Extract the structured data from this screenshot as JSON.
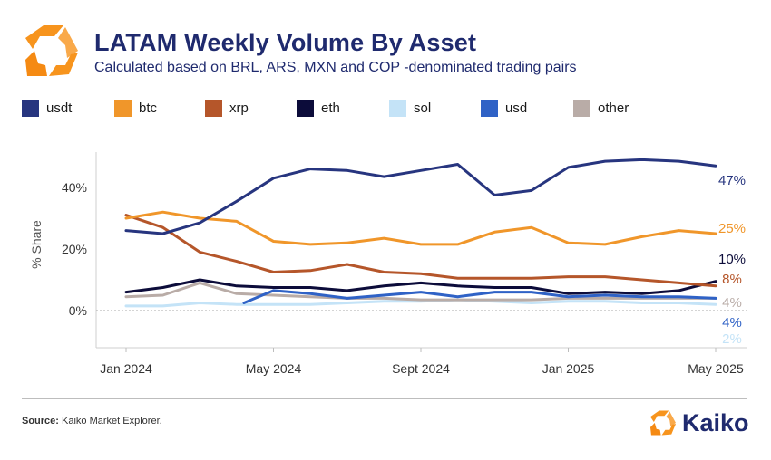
{
  "header": {
    "title": "LATAM Weekly Volume By Asset",
    "subtitle": "Calculated based on BRL, ARS, MXN and COP -denominated trading pairs"
  },
  "footer": {
    "source_label": "Source:",
    "source_text": "Kaiko Market Explorer.",
    "brand_name": "Kaiko"
  },
  "colors": {
    "brand_orange": "#f7941d",
    "brand_navy": "#1f2a6e"
  },
  "chart_data": {
    "type": "line",
    "title": "LATAM Weekly Volume By Asset",
    "ylabel": "% Share",
    "xlabel": "",
    "ylim": [
      -12,
      53
    ],
    "xlim": [
      0,
      16
    ],
    "yticks": [
      0,
      20,
      40
    ],
    "ytick_labels": [
      "0%",
      "20%",
      "40%"
    ],
    "xticks": [
      0,
      4,
      8,
      12,
      16
    ],
    "xtick_labels": [
      "Jan 2024",
      "May 2024",
      "Sept 2024",
      "Jan 2025",
      "May 2025"
    ],
    "legend_position": "top",
    "series": [
      {
        "name": "usdt",
        "color": "#27357f",
        "end_label": "47%",
        "x": [
          0,
          1,
          2,
          3,
          4,
          5,
          6,
          7,
          8,
          9,
          10,
          11,
          12,
          13,
          14,
          15,
          16
        ],
        "values": [
          26,
          25,
          28.5,
          35.5,
          43,
          46,
          45.5,
          43.5,
          45.5,
          47.5,
          37.5,
          39,
          46.5,
          48.5,
          49,
          48.5,
          47
        ]
      },
      {
        "name": "btc",
        "color": "#f0962a",
        "end_label": "25%",
        "x": [
          0,
          1,
          2,
          3,
          4,
          5,
          6,
          7,
          8,
          9,
          10,
          11,
          12,
          13,
          14,
          15,
          16
        ],
        "values": [
          30,
          32,
          30,
          29,
          22.5,
          21.5,
          22,
          23.5,
          21.5,
          21.5,
          25.5,
          27,
          22,
          21.5,
          24,
          26,
          25
        ]
      },
      {
        "name": "xrp",
        "color": "#b5562a",
        "end_label": "8%",
        "x": [
          0,
          1,
          2,
          3,
          4,
          5,
          6,
          7,
          8,
          9,
          10,
          11,
          12,
          13,
          14,
          15,
          16
        ],
        "values": [
          31,
          27,
          19,
          16,
          12.5,
          13,
          15,
          12.5,
          12,
          10.5,
          10.5,
          10.5,
          11,
          11,
          10,
          9,
          8
        ]
      },
      {
        "name": "eth",
        "color": "#0c0c3a",
        "end_label": "10%",
        "x": [
          0,
          1,
          2,
          3,
          4,
          5,
          6,
          7,
          8,
          9,
          10,
          11,
          12,
          13,
          14,
          15,
          16
        ],
        "values": [
          6,
          7.5,
          10,
          8,
          7.5,
          7.5,
          6.5,
          8,
          9,
          8,
          7.5,
          7.5,
          5.5,
          6,
          5.5,
          6.5,
          9.5
        ]
      },
      {
        "name": "sol",
        "color": "#c4e3f7",
        "end_label": "2%",
        "x": [
          0,
          1,
          2,
          3,
          4,
          5,
          6,
          7,
          8,
          9,
          10,
          11,
          12,
          13,
          14,
          15,
          16
        ],
        "values": [
          1.5,
          1.5,
          2.5,
          2,
          2,
          2,
          2.5,
          3,
          3,
          3.5,
          3,
          2.5,
          3,
          3,
          2.5,
          2.5,
          2
        ]
      },
      {
        "name": "usd",
        "color": "#2f62c6",
        "end_label": "4%",
        "x": [
          3.2,
          4,
          5,
          6,
          7,
          8,
          9,
          10,
          11,
          12,
          13,
          14,
          15,
          16
        ],
        "values": [
          2.5,
          6.5,
          5.5,
          4,
          5,
          6,
          4.5,
          6,
          6,
          4.5,
          5,
          4.5,
          4.5,
          4
        ]
      },
      {
        "name": "other",
        "color": "#b9aca7",
        "end_label": "4%",
        "x": [
          0,
          1,
          2,
          3,
          4,
          5,
          6,
          7,
          8,
          9,
          10,
          11,
          12,
          13,
          14,
          15,
          16
        ],
        "values": [
          4.5,
          5,
          9,
          5.5,
          5,
          4.5,
          4,
          4,
          3.5,
          3.5,
          3.5,
          3.5,
          4,
          4,
          4,
          4,
          4
        ]
      }
    ]
  }
}
